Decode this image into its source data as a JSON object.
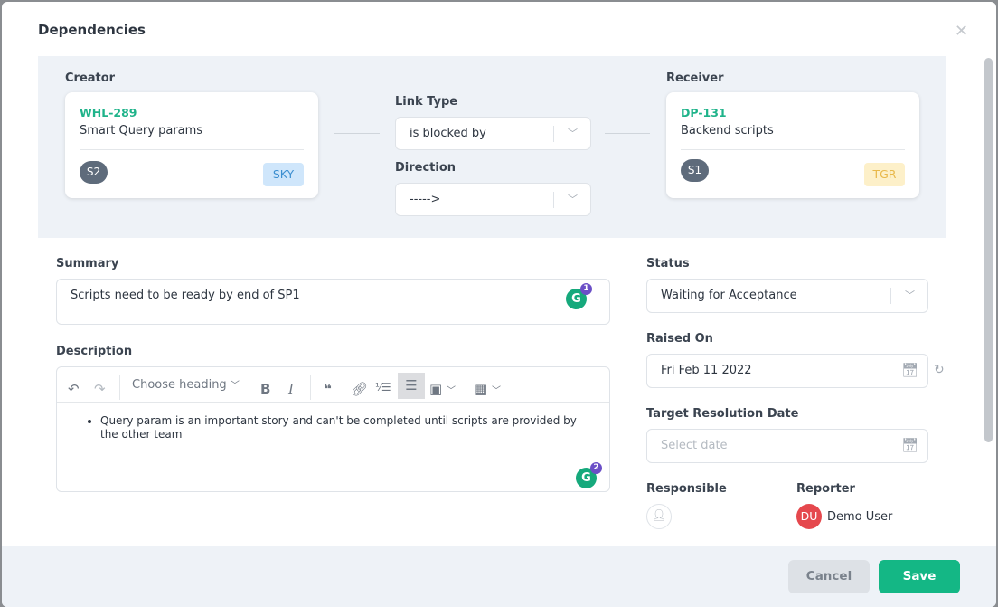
{
  "dialog": {
    "title": "Dependencies"
  },
  "creator": {
    "label": "Creator",
    "key": "WHL-289",
    "name": "Smart Query params",
    "avatar": "S2",
    "tag": "SKY",
    "tag_color": "#cfe6fb"
  },
  "receiver": {
    "label": "Receiver",
    "key": "DP-131",
    "name": "Backend scripts",
    "avatar": "S1",
    "tag": "TGR",
    "tag_color": "#fdf0c9"
  },
  "link_type": {
    "label": "Link Type",
    "value": "is blocked by"
  },
  "direction": {
    "label": "Direction",
    "value": "----->"
  },
  "summary": {
    "label": "Summary",
    "value": "Scripts need to be ready by end of SP1",
    "grammarly_count": "1"
  },
  "description": {
    "label": "Description",
    "heading_select": "Choose heading",
    "bullet": "Query param is an important story and can't be completed until scripts are provided by the other team",
    "grammarly_count": "2"
  },
  "status": {
    "label": "Status",
    "value": "Waiting for Acceptance"
  },
  "raised_on": {
    "label": "Raised On",
    "value": "Fri Feb 11 2022"
  },
  "target_date": {
    "label": "Target Resolution Date",
    "placeholder": "Select date"
  },
  "responsible": {
    "label": "Responsible"
  },
  "reporter": {
    "label": "Reporter",
    "initials": "DU",
    "name": "Demo User"
  },
  "footer": {
    "cancel": "Cancel",
    "save": "Save"
  },
  "colors": {
    "accent": "#1fb38a",
    "save": "#14b785"
  }
}
